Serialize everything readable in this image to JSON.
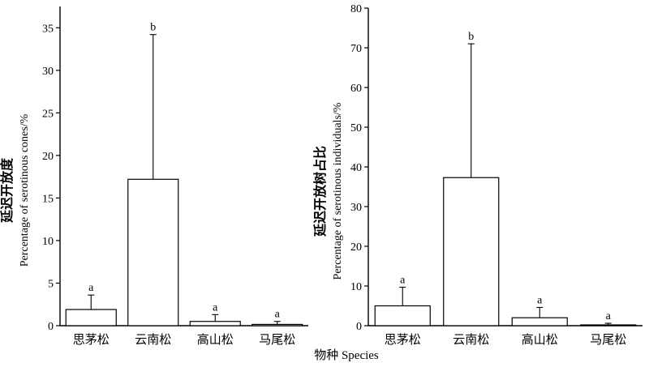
{
  "x_axis_title": "物种 Species",
  "chart_data": [
    {
      "type": "bar",
      "categories": [
        "思茅松",
        "云南松",
        "高山松",
        "马尾松"
      ],
      "values": [
        1.9,
        17.2,
        0.5,
        0.15
      ],
      "error_upper": [
        3.6,
        34.2,
        1.3,
        0.5
      ],
      "significance_letters": [
        "a",
        "b",
        "a",
        "a"
      ],
      "ylabel_cn": "延迟开放度",
      "ylabel_en": "Percentage of serotinous cones/%",
      "ylim": [
        0,
        37.5
      ],
      "yticks": [
        0,
        5,
        10,
        15,
        20,
        25,
        30,
        35
      ],
      "grid": false
    },
    {
      "type": "bar",
      "categories": [
        "思茅松",
        "云南松",
        "高山松",
        "马尾松"
      ],
      "values": [
        5.0,
        37.3,
        2.0,
        0.2
      ],
      "error_upper": [
        9.7,
        71.0,
        4.6,
        0.6
      ],
      "significance_letters": [
        "a",
        "b",
        "a",
        "a"
      ],
      "ylabel_cn": "延迟开放树占比",
      "ylabel_en": "Percentage of serotinous individuals/%",
      "ylim": [
        0,
        80
      ],
      "yticks": [
        0,
        10,
        20,
        30,
        40,
        50,
        60,
        70,
        80
      ],
      "grid": false
    }
  ]
}
